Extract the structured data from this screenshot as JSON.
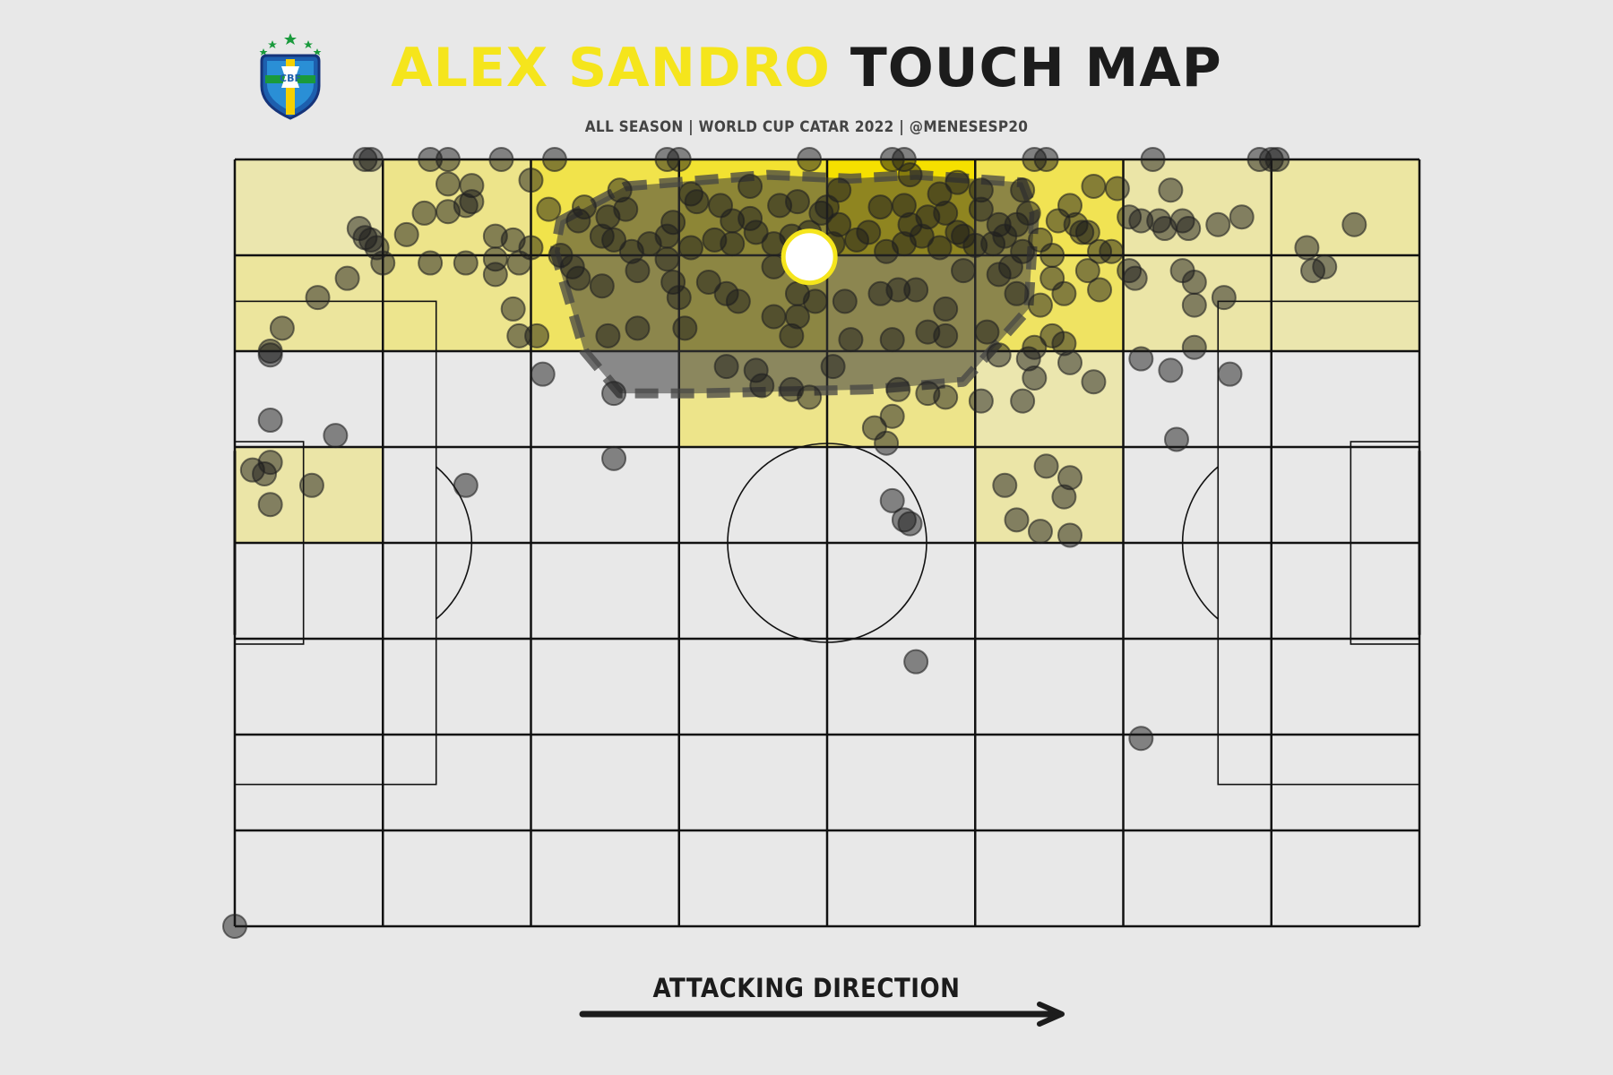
{
  "header": {
    "title_name": "ALEX SANDRO",
    "title_rest": "TOUCH MAP",
    "subtitle": "ALL SEASON | WORLD CUP CATAR 2022 | @MENESESP20"
  },
  "crest": {
    "icon": "cbf-crest-icon",
    "text": "CBF"
  },
  "footer": {
    "direction_label": "ATTACKING DIRECTION"
  },
  "colors": {
    "background": "#e8e8e8",
    "title_name": "#f5e51c",
    "title_rest": "#1c1c1c",
    "heat": "#f5e000",
    "marker": "#555555",
    "average_position": "#f5e51c"
  },
  "chart_data": {
    "type": "scatter",
    "description_units": "pitch coordinates 0-100 (x = attacking direction left to right, y = 0 at top touchline)",
    "xlim": [
      0,
      100
    ],
    "ylim": [
      0,
      100
    ],
    "grid": {
      "columns": 8,
      "rows": 8
    },
    "heat_bins": [
      {
        "col": 0,
        "row": 0,
        "v": 0.12
      },
      {
        "col": 1,
        "row": 0,
        "v": 0.3
      },
      {
        "col": 2,
        "row": 0,
        "v": 0.62
      },
      {
        "col": 3,
        "row": 0,
        "v": 0.75
      },
      {
        "col": 4,
        "row": 0,
        "v": 1.0
      },
      {
        "col": 5,
        "row": 0,
        "v": 0.58
      },
      {
        "col": 6,
        "row": 0,
        "v": 0.15
      },
      {
        "col": 7,
        "row": 0,
        "v": 0.18
      },
      {
        "col": 0,
        "row": 1,
        "v": 0.2
      },
      {
        "col": 1,
        "row": 1,
        "v": 0.28
      },
      {
        "col": 2,
        "row": 1,
        "v": 0.5
      },
      {
        "col": 3,
        "row": 1,
        "v": 0.6
      },
      {
        "col": 4,
        "row": 1,
        "v": 0.45
      },
      {
        "col": 5,
        "row": 1,
        "v": 0.5
      },
      {
        "col": 6,
        "row": 1,
        "v": 0.15
      },
      {
        "col": 7,
        "row": 1,
        "v": 0.12
      },
      {
        "col": 3,
        "row": 2,
        "v": 0.3
      },
      {
        "col": 4,
        "row": 2,
        "v": 0.3
      },
      {
        "col": 5,
        "row": 2,
        "v": 0.12
      },
      {
        "col": 0,
        "row": 3,
        "v": 0.15
      },
      {
        "col": 5,
        "row": 3,
        "v": 0.15
      }
    ],
    "touches": [
      [
        11.0,
        0
      ],
      [
        11.5,
        0
      ],
      [
        16.5,
        0
      ],
      [
        18.0,
        0
      ],
      [
        22.5,
        0
      ],
      [
        27.0,
        0
      ],
      [
        36.5,
        0
      ],
      [
        37.5,
        0
      ],
      [
        48.5,
        0
      ],
      [
        55.5,
        0
      ],
      [
        56.5,
        0
      ],
      [
        67.5,
        0
      ],
      [
        68.5,
        0
      ],
      [
        77.5,
        0
      ],
      [
        86.5,
        0
      ],
      [
        87.5,
        0
      ],
      [
        88.0,
        0
      ],
      [
        18.0,
        3.2
      ],
      [
        20.0,
        3.4
      ],
      [
        25.0,
        2.7
      ],
      [
        32.5,
        4.0
      ],
      [
        38.5,
        4.5
      ],
      [
        43.5,
        3.5
      ],
      [
        51.0,
        4.0
      ],
      [
        57.0,
        2.0
      ],
      [
        59.5,
        4.5
      ],
      [
        61.0,
        3.0
      ],
      [
        63.0,
        4.0
      ],
      [
        66.5,
        4.0
      ],
      [
        72.5,
        3.5
      ],
      [
        74.5,
        3.8
      ],
      [
        79.0,
        4.0
      ],
      [
        18.0,
        6.8
      ],
      [
        20.0,
        5.5
      ],
      [
        19.5,
        6.0
      ],
      [
        16.0,
        7.0
      ],
      [
        26.5,
        6.5
      ],
      [
        29.0,
        8.0
      ],
      [
        29.5,
        6.2
      ],
      [
        31.5,
        7.5
      ],
      [
        33.0,
        6.5
      ],
      [
        37.0,
        8.2
      ],
      [
        39.0,
        5.5
      ],
      [
        41.0,
        6.0
      ],
      [
        42.0,
        8.0
      ],
      [
        43.5,
        7.7
      ],
      [
        46.0,
        6.0
      ],
      [
        47.5,
        5.5
      ],
      [
        49.5,
        7.0
      ],
      [
        50.0,
        6.2
      ],
      [
        51.0,
        8.5
      ],
      [
        54.5,
        6.2
      ],
      [
        56.5,
        6.0
      ],
      [
        57.0,
        8.5
      ],
      [
        58.5,
        7.5
      ],
      [
        60.0,
        7.0
      ],
      [
        61.0,
        9.5
      ],
      [
        63.0,
        6.5
      ],
      [
        64.5,
        8.5
      ],
      [
        66.0,
        8.5
      ],
      [
        67.0,
        7.0
      ],
      [
        69.5,
        8.0
      ],
      [
        70.5,
        6.0
      ],
      [
        71.0,
        8.5
      ],
      [
        72.0,
        9.5
      ],
      [
        75.5,
        7.5
      ],
      [
        76.5,
        8.0
      ],
      [
        80.0,
        8.0
      ],
      [
        10.5,
        9.0
      ],
      [
        11.0,
        10.2
      ],
      [
        11.5,
        10.5
      ],
      [
        14.5,
        9.8
      ],
      [
        22.0,
        10.0
      ],
      [
        23.5,
        10.5
      ],
      [
        25.0,
        11.5
      ],
      [
        31.0,
        10.0
      ],
      [
        32.0,
        10.5
      ],
      [
        33.5,
        12.0
      ],
      [
        35.0,
        11.0
      ],
      [
        36.5,
        10.0
      ],
      [
        38.5,
        11.5
      ],
      [
        40.5,
        10.5
      ],
      [
        42.0,
        11.0
      ],
      [
        44.0,
        9.5
      ],
      [
        45.5,
        11.0
      ],
      [
        47.0,
        10.0
      ],
      [
        48.5,
        9.5
      ],
      [
        50.5,
        11.0
      ],
      [
        52.5,
        10.5
      ],
      [
        53.5,
        9.5
      ],
      [
        55.0,
        12.0
      ],
      [
        56.5,
        11.0
      ],
      [
        58.0,
        10.0
      ],
      [
        59.5,
        11.5
      ],
      [
        61.5,
        10.0
      ],
      [
        62.5,
        11.2
      ],
      [
        64.0,
        11.0
      ],
      [
        65.0,
        10.0
      ],
      [
        66.5,
        12.0
      ],
      [
        68.0,
        10.5
      ],
      [
        69.0,
        12.5
      ],
      [
        71.5,
        9.5
      ],
      [
        73.0,
        12.0
      ],
      [
        74.0,
        12.0
      ],
      [
        78.0,
        8.0
      ],
      [
        78.5,
        9.0
      ],
      [
        80.5,
        9.0
      ],
      [
        83.0,
        8.5
      ],
      [
        85.0,
        7.5
      ],
      [
        90.5,
        11.5
      ],
      [
        91.0,
        14.5
      ],
      [
        94.5,
        8.5
      ],
      [
        9.5,
        15.5
      ],
      [
        7.0,
        18.0
      ],
      [
        4.0,
        22.0
      ],
      [
        3.0,
        25.0
      ],
      [
        12.0,
        11.5
      ],
      [
        12.5,
        13.5
      ],
      [
        16.5,
        13.5
      ],
      [
        19.5,
        13.5
      ],
      [
        22.0,
        13.0
      ],
      [
        22.0,
        15.0
      ],
      [
        24.0,
        13.5
      ],
      [
        27.5,
        12.5
      ],
      [
        28.5,
        14.0
      ],
      [
        29.0,
        15.5
      ],
      [
        31.0,
        16.5
      ],
      [
        34.0,
        14.5
      ],
      [
        36.5,
        13.0
      ],
      [
        37.0,
        16.0
      ],
      [
        37.5,
        18.0
      ],
      [
        40.0,
        16.0
      ],
      [
        41.5,
        17.5
      ],
      [
        42.5,
        18.5
      ],
      [
        45.5,
        14.0
      ],
      [
        47.5,
        17.5
      ],
      [
        49.0,
        18.5
      ],
      [
        51.5,
        18.5
      ],
      [
        54.5,
        17.5
      ],
      [
        56.0,
        17.0
      ],
      [
        57.5,
        17.0
      ],
      [
        60.0,
        19.5
      ],
      [
        61.5,
        14.5
      ],
      [
        64.5,
        15.0
      ],
      [
        65.5,
        14.0
      ],
      [
        66.0,
        17.5
      ],
      [
        68.0,
        19.0
      ],
      [
        69.0,
        15.5
      ],
      [
        75.5,
        14.5
      ],
      [
        76.0,
        15.5
      ],
      [
        73.0,
        17.0
      ],
      [
        70.0,
        17.5
      ],
      [
        72.0,
        14.5
      ],
      [
        80.0,
        14.5
      ],
      [
        81.0,
        16.0
      ],
      [
        83.5,
        18.0
      ],
      [
        92.0,
        14.0
      ],
      [
        23.5,
        19.5
      ],
      [
        24.0,
        23.0
      ],
      [
        25.5,
        23.0
      ],
      [
        3.0,
        25.5
      ],
      [
        34.0,
        22.0
      ],
      [
        31.5,
        23.0
      ],
      [
        38.0,
        22.0
      ],
      [
        45.5,
        20.5
      ],
      [
        47.0,
        23.0
      ],
      [
        47.5,
        20.5
      ],
      [
        52.0,
        23.5
      ],
      [
        55.5,
        23.5
      ],
      [
        58.5,
        22.5
      ],
      [
        60.0,
        23.0
      ],
      [
        63.5,
        22.5
      ],
      [
        64.5,
        25.5
      ],
      [
        67.0,
        26.0
      ],
      [
        67.5,
        24.5
      ],
      [
        69.0,
        23.0
      ],
      [
        70.0,
        24.0
      ],
      [
        70.5,
        26.5
      ],
      [
        72.5,
        29.0
      ],
      [
        76.5,
        26.0
      ],
      [
        79.0,
        27.5
      ],
      [
        81.0,
        19.0
      ],
      [
        81.0,
        24.5
      ],
      [
        84.0,
        28.0
      ],
      [
        79.5,
        36.5
      ],
      [
        8.5,
        36.0
      ],
      [
        3.0,
        34.0
      ],
      [
        26.0,
        28.0
      ],
      [
        32.0,
        30.5
      ],
      [
        41.5,
        27.0
      ],
      [
        44.0,
        27.5
      ],
      [
        44.5,
        29.5
      ],
      [
        50.5,
        27.0
      ],
      [
        48.5,
        31.0
      ],
      [
        47.0,
        30.0
      ],
      [
        56.0,
        30.0
      ],
      [
        54.0,
        35.0
      ],
      [
        55.5,
        33.5
      ],
      [
        55.0,
        37.0
      ],
      [
        58.5,
        30.5
      ],
      [
        60.0,
        31.0
      ],
      [
        63.0,
        31.5
      ],
      [
        66.5,
        31.5
      ],
      [
        67.5,
        28.5
      ],
      [
        32.0,
        39.0
      ],
      [
        19.5,
        42.5
      ],
      [
        1.5,
        40.5
      ],
      [
        2.5,
        41.0
      ],
      [
        3.0,
        39.5
      ],
      [
        3.0,
        45.0
      ],
      [
        6.5,
        42.5
      ],
      [
        55.5,
        44.5
      ],
      [
        56.5,
        47.0
      ],
      [
        57.0,
        47.5
      ],
      [
        65.0,
        42.5
      ],
      [
        66.0,
        47.0
      ],
      [
        68.5,
        40.0
      ],
      [
        70.5,
        41.5
      ],
      [
        70.0,
        44.0
      ],
      [
        68.0,
        48.5
      ],
      [
        70.5,
        49.0
      ],
      [
        57.5,
        65.5
      ],
      [
        76.5,
        75.5
      ],
      [
        0.0,
        100.0
      ]
    ],
    "average_position": [
      48.5,
      12.7
    ],
    "convex_hull": [
      [
        27.5,
        8.0
      ],
      [
        33.0,
        3.5
      ],
      [
        45.0,
        2.0
      ],
      [
        52.0,
        2.5
      ],
      [
        57.5,
        2.0
      ],
      [
        66.5,
        3.0
      ],
      [
        67.5,
        7.0
      ],
      [
        67.0,
        19.5
      ],
      [
        61.5,
        29.0
      ],
      [
        53.5,
        30.0
      ],
      [
        39.0,
        30.5
      ],
      [
        32.5,
        30.5
      ],
      [
        29.5,
        25.0
      ],
      [
        27.0,
        12.0
      ]
    ],
    "xlabel": "ATTACKING DIRECTION"
  }
}
